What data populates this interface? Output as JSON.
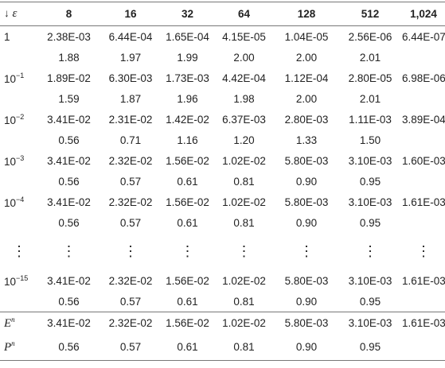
{
  "header": {
    "corner_arrow": "↓",
    "corner_symbol": "ε",
    "columns": [
      "8",
      "16",
      "32",
      "64",
      "128",
      "512",
      "1,024"
    ]
  },
  "rows": [
    {
      "label": {
        "base": "1",
        "exp": null
      },
      "values": [
        "2.38E-03",
        "6.44E-04",
        "1.65E-04",
        "4.15E-05",
        "1.04E-05",
        "2.56E-06",
        "6.44E-07"
      ],
      "orders": [
        "1.88",
        "1.97",
        "1.99",
        "2.00",
        "2.00",
        "2.01"
      ]
    },
    {
      "label": {
        "base": "10",
        "exp": "−1"
      },
      "values": [
        "1.89E-02",
        "6.30E-03",
        "1.73E-03",
        "4.42E-04",
        "1.12E-04",
        "2.80E-05",
        "6.98E-06"
      ],
      "orders": [
        "1.59",
        "1.87",
        "1.96",
        "1.98",
        "2.00",
        "2.01"
      ]
    },
    {
      "label": {
        "base": "10",
        "exp": "−2"
      },
      "values": [
        "3.41E-02",
        "2.31E-02",
        "1.42E-02",
        "6.37E-03",
        "2.80E-03",
        "1.11E-03",
        "3.89E-04"
      ],
      "orders": [
        "0.56",
        "0.71",
        "1.16",
        "1.20",
        "1.33",
        "1.50"
      ]
    },
    {
      "label": {
        "base": "10",
        "exp": "−3"
      },
      "values": [
        "3.41E-02",
        "2.32E-02",
        "1.56E-02",
        "1.02E-02",
        "5.80E-03",
        "3.10E-03",
        "1.60E-03"
      ],
      "orders": [
        "0.56",
        "0.57",
        "0.61",
        "0.81",
        "0.90",
        "0.95"
      ]
    },
    {
      "label": {
        "base": "10",
        "exp": "−4"
      },
      "values": [
        "3.41E-02",
        "2.32E-02",
        "1.56E-02",
        "1.02E-02",
        "5.80E-03",
        "3.10E-03",
        "1.61E-03"
      ],
      "orders": [
        "0.56",
        "0.57",
        "0.61",
        "0.81",
        "0.90",
        "0.95"
      ]
    }
  ],
  "dots": [
    "⋮",
    "⋮",
    "⋮",
    "⋮",
    "⋮",
    "⋮",
    "⋮",
    "⋮"
  ],
  "last_row": {
    "label": {
      "base": "10",
      "exp": "−15"
    },
    "values": [
      "3.41E-02",
      "2.32E-02",
      "1.56E-02",
      "1.02E-02",
      "5.80E-03",
      "3.10E-03",
      "1.61E-03"
    ],
    "orders": [
      "0.56",
      "0.57",
      "0.61",
      "0.81",
      "0.90",
      "0.95"
    ]
  },
  "summary": [
    {
      "label": {
        "base": "E",
        "exp": "n"
      },
      "values": [
        "3.41E-02",
        "2.32E-02",
        "1.56E-02",
        "1.02E-02",
        "5.80E-03",
        "3.10E-03",
        "1.61E-03"
      ]
    },
    {
      "label": {
        "base": "P",
        "exp": "n"
      },
      "values": [
        "0.56",
        "0.57",
        "0.61",
        "0.81",
        "0.90",
        "0.95"
      ]
    }
  ]
}
